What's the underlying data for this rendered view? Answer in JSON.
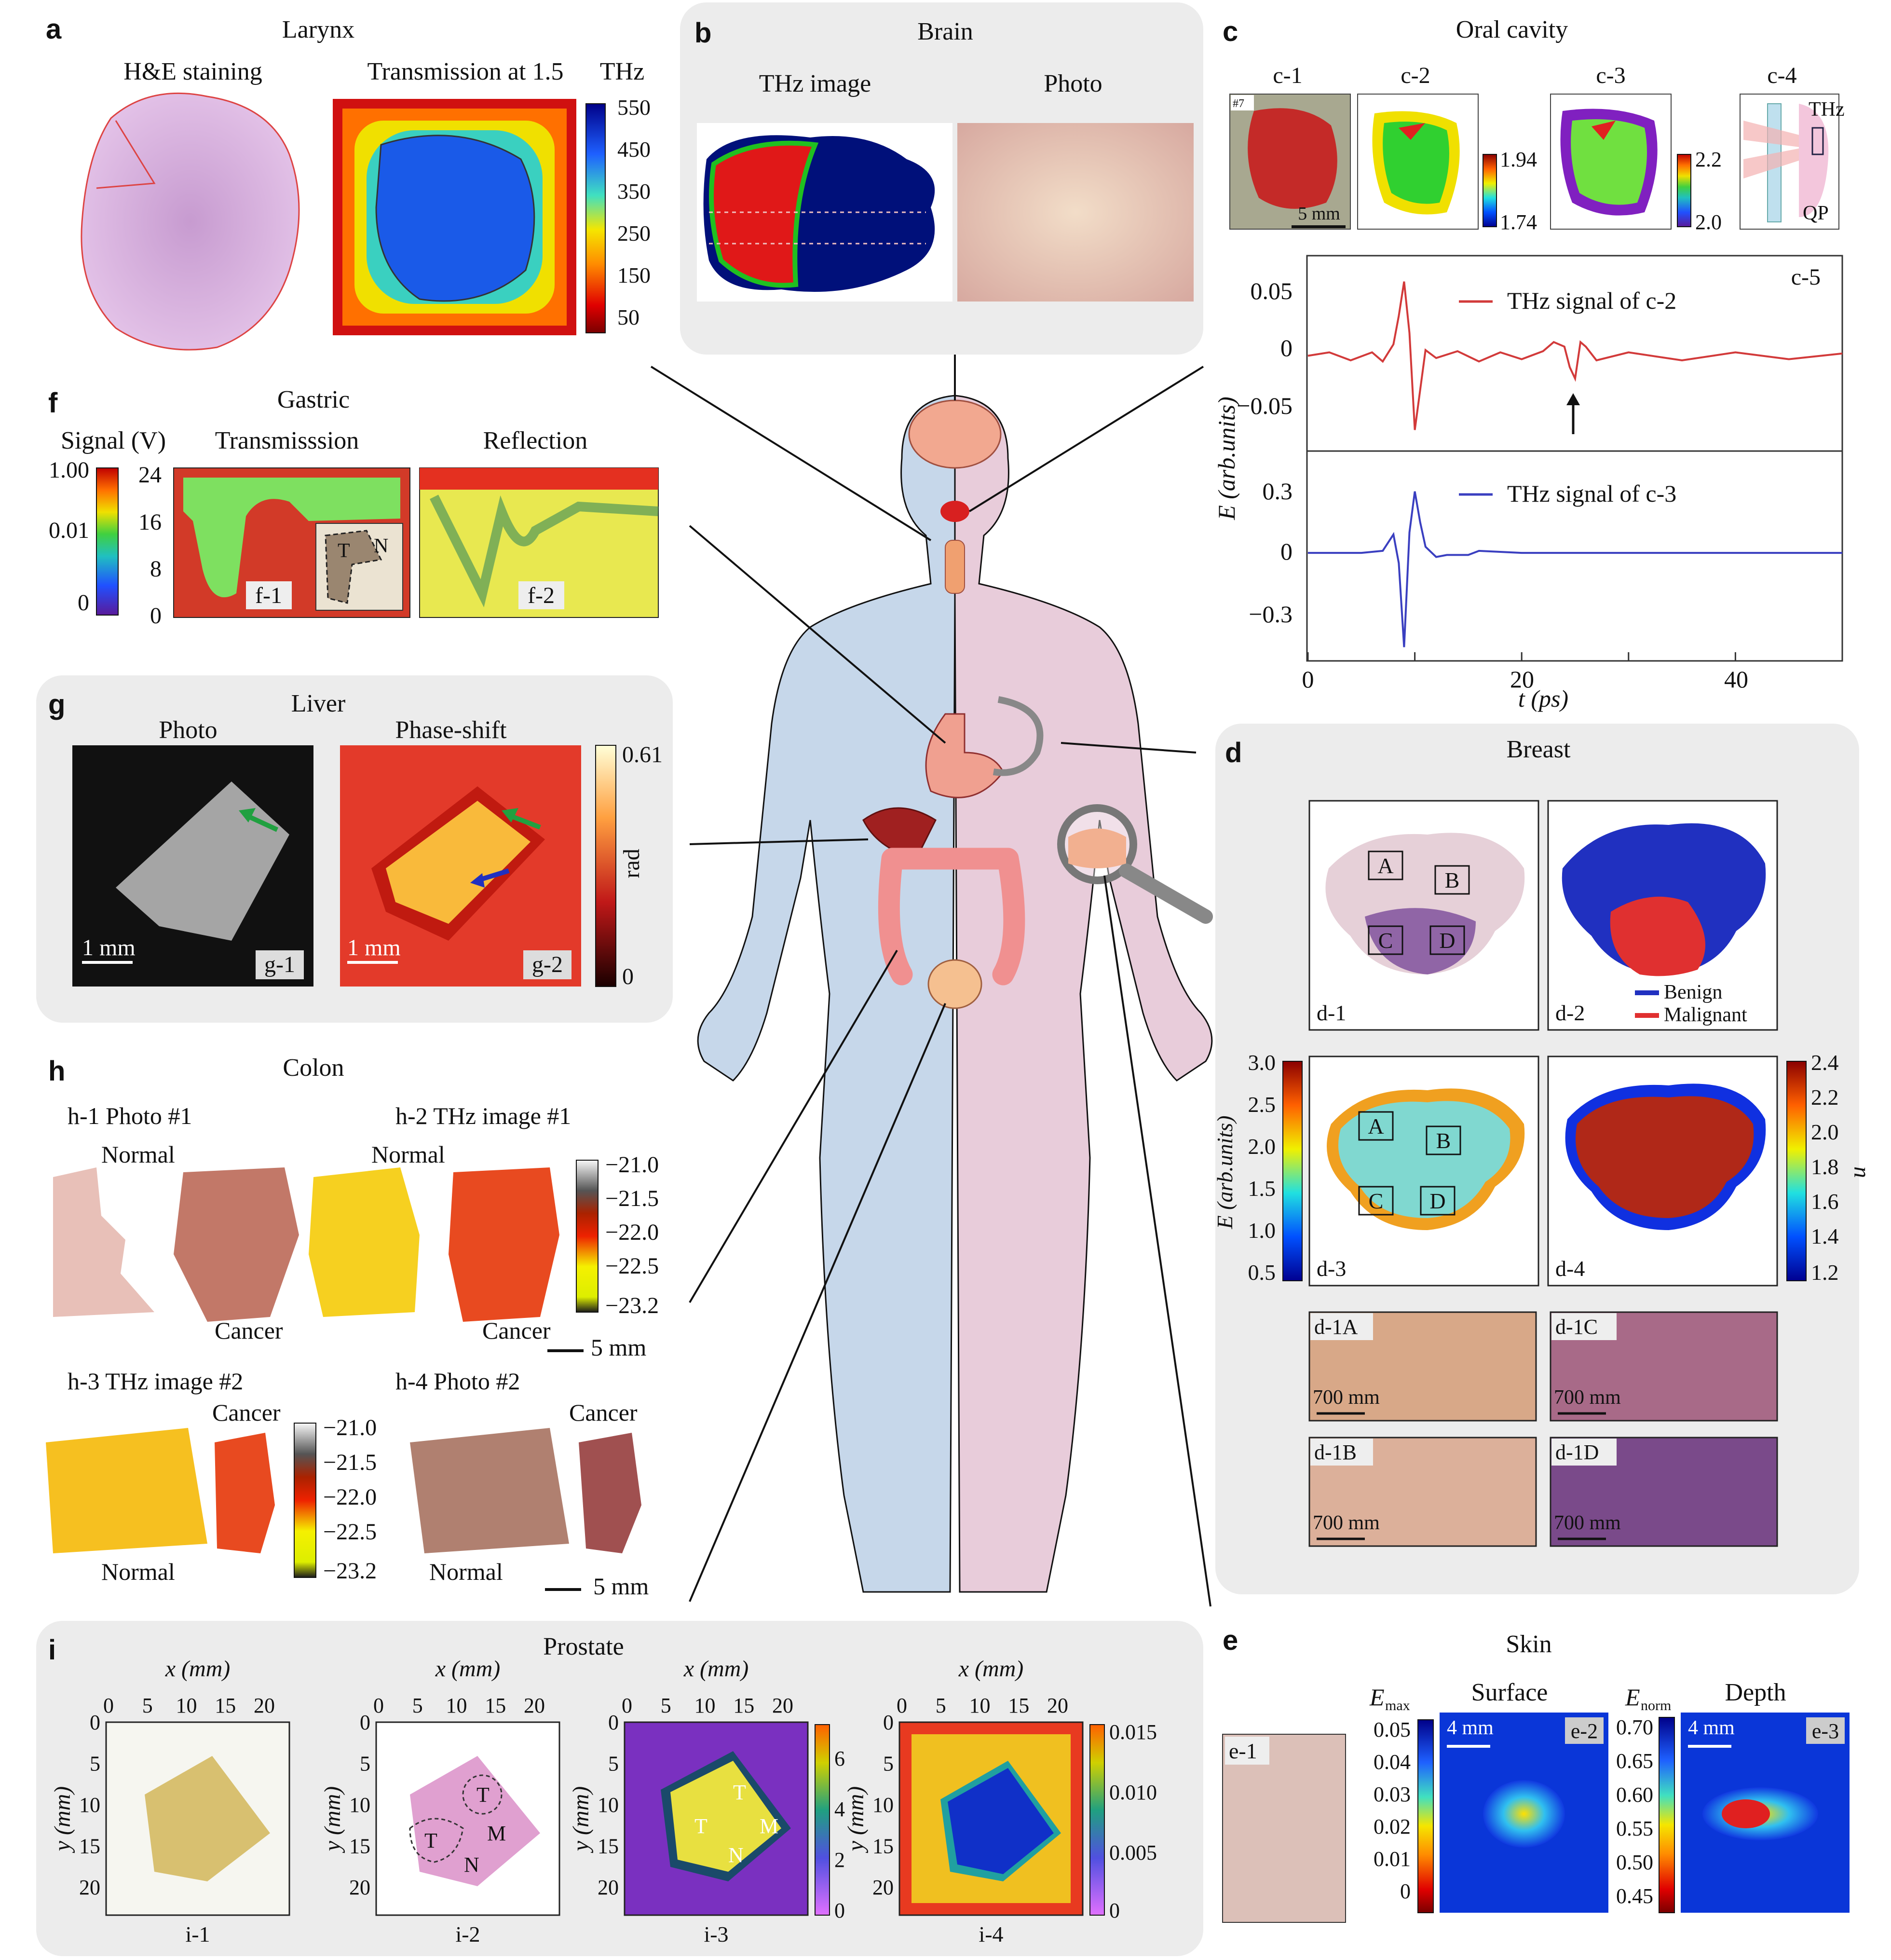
{
  "panels": {
    "a": {
      "letter": "a",
      "title": "Larynx",
      "he_label": "H&E staining",
      "trans_label": "Transmission at 1.5",
      "unit": "THz",
      "ticks": [
        "550",
        "450",
        "350",
        "250",
        "150",
        "50"
      ]
    },
    "b": {
      "letter": "b",
      "title": "Brain",
      "thz_label": "THz image",
      "photo_label": "Photo"
    },
    "c": {
      "letter": "c",
      "title": "Oral cavity",
      "sub": [
        "c-1",
        "c-2",
        "c-3",
        "c-4",
        "c-5"
      ],
      "c1_tag": "#7",
      "c1_scale": "5 mm",
      "c2_ticks": [
        "1.94",
        "1.74"
      ],
      "c3_ticks": [
        "2.2",
        "2.0"
      ],
      "c4_thz": "THz",
      "c4_qp": "QP",
      "legend1": "THz signal of c-2",
      "legend2": "THz signal of c-3",
      "ylabel": "E (arb.units)",
      "xlabel": "t (ps)",
      "yticks_top": [
        "0.05",
        "0",
        "−0.05"
      ],
      "yticks_bot": [
        "0.3",
        "0",
        "−0.3"
      ],
      "xticks": [
        "0",
        "20",
        "40"
      ]
    },
    "d": {
      "letter": "d",
      "title": "Breast",
      "sub": [
        "d-1",
        "d-2",
        "d-3",
        "d-4"
      ],
      "regions": [
        "A",
        "B",
        "C",
        "D"
      ],
      "legend_benign": "Benign",
      "legend_malignant": "Malignant",
      "d3_label": "E (arb.units)",
      "d3_ticks": [
        "3.0",
        "2.5",
        "2.0",
        "1.5",
        "1.0",
        "0.5"
      ],
      "d4_label": "n",
      "d4_ticks": [
        "2.4",
        "2.2",
        "2.0",
        "1.8",
        "1.6",
        "1.4",
        "1.2"
      ],
      "hist": [
        {
          "id": "d-1A"
        },
        {
          "id": "d-1C"
        },
        {
          "id": "d-1B"
        },
        {
          "id": "d-1D"
        }
      ],
      "hist_scale": "700 mm"
    },
    "e": {
      "letter": "e",
      "title": "Skin",
      "e1": "e-1",
      "e2": "e-2",
      "e3": "e-3",
      "emax": "E",
      "emax_sub": "max",
      "enorm": "E",
      "enorm_sub": "norm",
      "surface": "Surface",
      "depth": "Depth",
      "scale": "4 mm",
      "e2_ticks": [
        "0.05",
        "0.04",
        "0.03",
        "0.02",
        "0.01",
        "0"
      ],
      "e3_ticks": [
        "0.70",
        "0.65",
        "0.60",
        "0.55",
        "0.50",
        "0.45"
      ]
    },
    "f": {
      "letter": "f",
      "title": "Gastric",
      "signal": "Signal (V)",
      "trans": "Transmisssion",
      "refl": "Reflection",
      "cticks": [
        "1.00",
        "0.01",
        "0"
      ],
      "yticks": [
        "24",
        "16",
        "8",
        "0"
      ],
      "f1": "f-1",
      "f2": "f-2",
      "T": "T",
      "N": "N"
    },
    "g": {
      "letter": "g",
      "title": "Liver",
      "photo": "Photo",
      "phase": "Phase-shift",
      "unit": "rad",
      "ticks": [
        "0.61",
        "0"
      ],
      "scale": "1 mm",
      "g1": "g-1",
      "g2": "g-2"
    },
    "h": {
      "letter": "h",
      "title": "Colon",
      "h1": "h-1   Photo #1",
      "h2": "h-2   THz image #1",
      "h3": "h-3   THz image #2",
      "h4": "h-4   Photo #2",
      "normal": "Normal",
      "cancer": "Cancer",
      "scale": "5 mm",
      "ticks": [
        "−21.0",
        "−21.5",
        "−22.0",
        "−22.5",
        "−23.2"
      ]
    },
    "i": {
      "letter": "i",
      "title": "Prostate",
      "xlabel": "x (mm)",
      "ylabel": "y (mm)",
      "xticks": [
        "0",
        "5",
        "10",
        "15",
        "20"
      ],
      "yticks": [
        "0",
        "5",
        "10",
        "15",
        "20"
      ],
      "sub": [
        "i-1",
        "i-2",
        "i-3",
        "i-4"
      ],
      "i3_ticks": [
        "6",
        "4",
        "2",
        "0"
      ],
      "i4_ticks": [
        "0.015",
        "0.010",
        "0.005",
        "0"
      ],
      "T": "T",
      "M": "M",
      "N": "N"
    }
  },
  "colors": {
    "panel_bg": "#ececec",
    "body_left": "#c5d6ea",
    "body_right": "#e8ccda",
    "signal_red": "#d23a3a",
    "signal_blue": "#3a3fc0"
  },
  "chart_data": [
    {
      "type": "line",
      "panel": "c-5 upper",
      "series": [
        {
          "name": "THz signal of c-2"
        }
      ],
      "xlabel": "t (ps)",
      "ylabel": "E (arb.units)",
      "xlim": [
        0,
        50
      ],
      "ylim": [
        -0.075,
        0.075
      ],
      "x": [
        0,
        2,
        4,
        6,
        7,
        8,
        8.5,
        9,
        9.5,
        10,
        10.5,
        11,
        12,
        14,
        16,
        18,
        20,
        22,
        23,
        24,
        24.5,
        25,
        25.5,
        26,
        27,
        30,
        35,
        40,
        45,
        50
      ],
      "y": [
        0,
        0.003,
        -0.004,
        0.003,
        -0.005,
        0.01,
        0.035,
        0.065,
        0.02,
        -0.065,
        -0.03,
        0.005,
        -0.002,
        0.004,
        -0.005,
        0.003,
        -0.003,
        0.004,
        0.012,
        0.008,
        -0.01,
        -0.02,
        0.012,
        0.008,
        -0.004,
        0.003,
        -0.004,
        0.003,
        -0.003,
        0.002
      ]
    },
    {
      "type": "line",
      "panel": "c-5 lower",
      "series": [
        {
          "name": "THz signal of c-3"
        }
      ],
      "xlabel": "t (ps)",
      "ylabel": "E (arb.units)",
      "xlim": [
        0,
        50
      ],
      "ylim": [
        -0.48,
        0.45
      ],
      "x": [
        0,
        5,
        7,
        8,
        8.5,
        9,
        9.5,
        10,
        10.5,
        11,
        12,
        13,
        15,
        16,
        20,
        30,
        40,
        50
      ],
      "y": [
        0,
        0,
        0.01,
        0.09,
        -0.05,
        -0.46,
        0.1,
        0.3,
        0.15,
        0.03,
        -0.02,
        -0.01,
        -0.01,
        0.01,
        0,
        0,
        0,
        0
      ]
    }
  ]
}
